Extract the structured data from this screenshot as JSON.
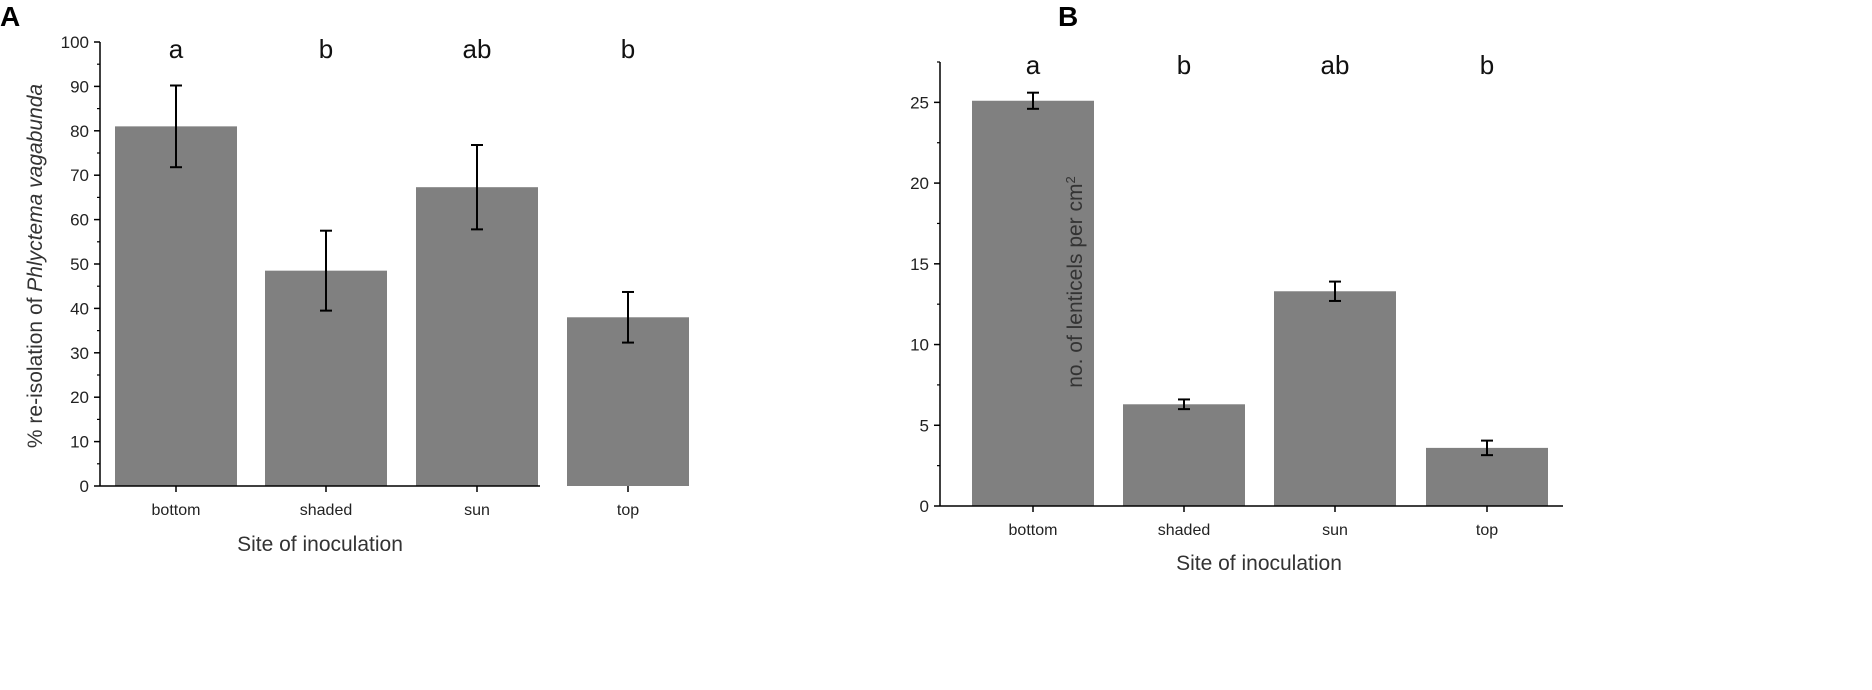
{
  "colors": {
    "bar": "#808080",
    "axis": "#000000",
    "error_bar": "#000000"
  },
  "chart_data": [
    {
      "panel_label": "A",
      "type": "bar",
      "categories": [
        "bottom",
        "shaded",
        "sun",
        "top"
      ],
      "values": [
        81,
        48.5,
        67.3,
        38
      ],
      "errors": [
        9.2,
        9.0,
        9.5,
        5.7
      ],
      "significance": [
        "a",
        "b",
        "ab",
        "b"
      ],
      "xlabel": "Site of inoculation",
      "ylabel_prefix": "% re-isolation of ",
      "ylabel_italic": "Phlyctema vagabunda",
      "ylim": [
        0,
        100
      ],
      "yticks": [
        0,
        10,
        20,
        30,
        40,
        50,
        60,
        70,
        80,
        90,
        100
      ],
      "grid": false
    },
    {
      "panel_label": "B",
      "type": "bar",
      "categories": [
        "bottom",
        "shaded",
        "sun",
        "top"
      ],
      "values": [
        25.1,
        6.3,
        13.3,
        3.6
      ],
      "errors": [
        0.5,
        0.3,
        0.6,
        0.45
      ],
      "significance": [
        "a",
        "b",
        "ab",
        "b"
      ],
      "xlabel": "Site of inoculation",
      "ylabel_prefix": "no. of lenticels per cm",
      "ylabel_sup": "2",
      "ylim": [
        0,
        27.5
      ],
      "yticks": [
        0,
        5,
        10,
        15,
        20,
        25
      ],
      "grid": false
    }
  ]
}
